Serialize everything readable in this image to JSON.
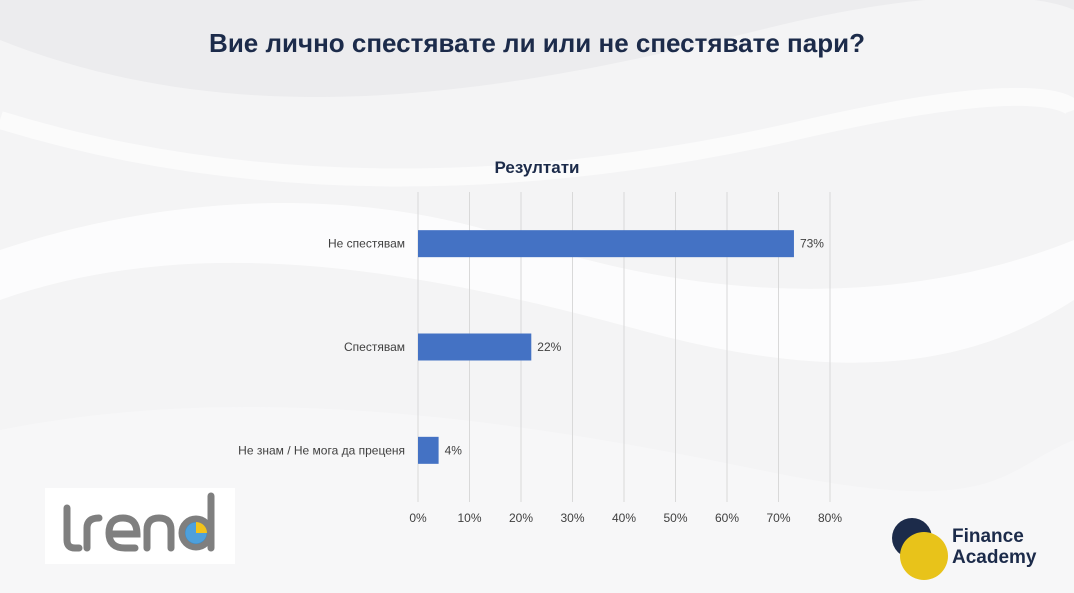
{
  "page": {
    "title": "Вие лично спестявате ли или не спестявате пари?"
  },
  "logos": {
    "trend_text": "trend",
    "finance_academy_line1": "Finance",
    "finance_academy_line2": "Academy"
  },
  "colors": {
    "bar": "#4472c4",
    "title": "#1c2b4a",
    "grid": "#d9d9d9",
    "fa_navy": "#1c2b4a",
    "fa_yellow": "#e8c31a",
    "trend_gray": "#7f7f7f",
    "trend_blue": "#2f8fd6",
    "trend_yellow": "#f2c31b"
  },
  "chart_data": {
    "type": "bar",
    "orientation": "horizontal",
    "title": "Резултати",
    "categories": [
      "Не спестявам",
      "Спестявам",
      "Не знам / Не мога да преценя"
    ],
    "values": [
      73,
      22,
      4
    ],
    "data_labels": [
      "73%",
      "22%",
      "4%"
    ],
    "xlim": [
      0,
      80
    ],
    "x_ticks": [
      "0%",
      "10%",
      "20%",
      "30%",
      "40%",
      "50%",
      "60%",
      "70%",
      "80%"
    ],
    "grid": true,
    "legend": "none"
  }
}
